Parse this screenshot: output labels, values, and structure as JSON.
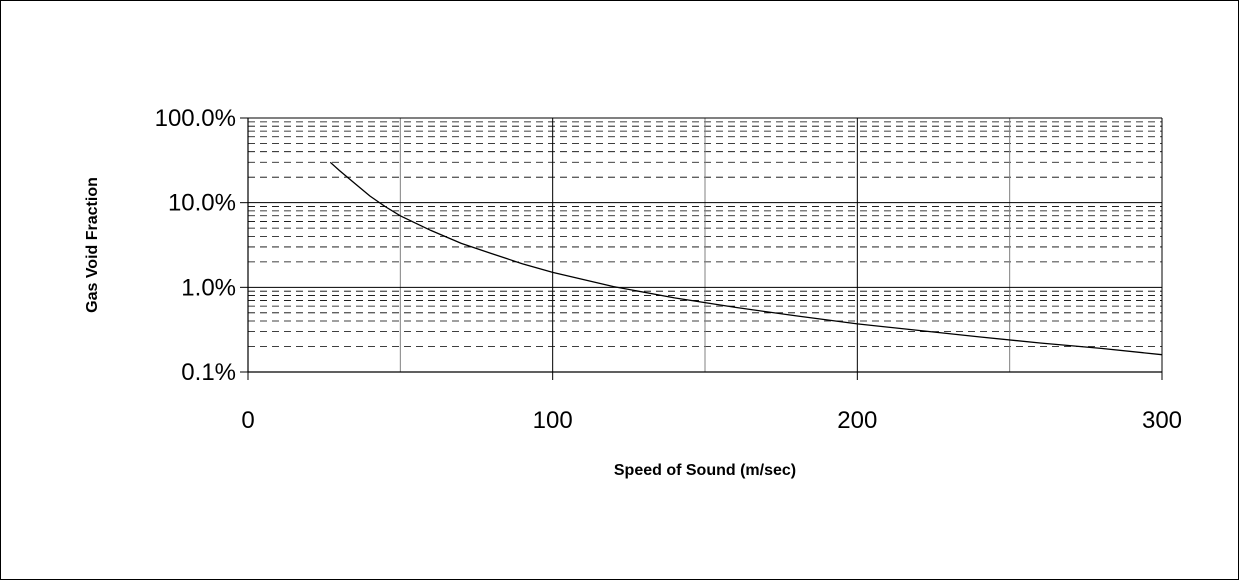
{
  "chart_data": {
    "type": "line",
    "title": "",
    "xlabel": "Speed of Sound (m/sec)",
    "ylabel": "Gas Void Fraction",
    "xlim": [
      0,
      300
    ],
    "ylim": [
      0.001,
      1
    ],
    "y_scale": "log",
    "x_ticks": [
      0,
      100,
      200,
      300
    ],
    "x_tick_labels": [
      "0",
      "100",
      "200",
      "300"
    ],
    "x_minor_gridlines": [
      50,
      150,
      250
    ],
    "y_ticks": [
      0.001,
      0.01,
      0.1,
      1
    ],
    "y_tick_labels": [
      "0.1%",
      "1.0%",
      "10.0%",
      "100.0%"
    ],
    "grid": {
      "major": "solid",
      "minor_x": "solid-light",
      "minor_y": "dashed"
    },
    "legend": "none",
    "series": [
      {
        "x": [
          27,
          30,
          35,
          40,
          45,
          50,
          60,
          70,
          80,
          90,
          100,
          120,
          140,
          160,
          180,
          200,
          220,
          240,
          260,
          280,
          300
        ],
        "y": [
          0.3,
          0.24,
          0.17,
          0.12,
          0.09,
          0.07,
          0.047,
          0.033,
          0.025,
          0.019,
          0.015,
          0.0102,
          0.0075,
          0.0058,
          0.0046,
          0.0037,
          0.0031,
          0.0026,
          0.0022,
          0.0019,
          0.0016
        ]
      }
    ],
    "colors": {
      "line": "#000000",
      "major_grid": "#000000",
      "minor_grid": "#808080"
    }
  }
}
